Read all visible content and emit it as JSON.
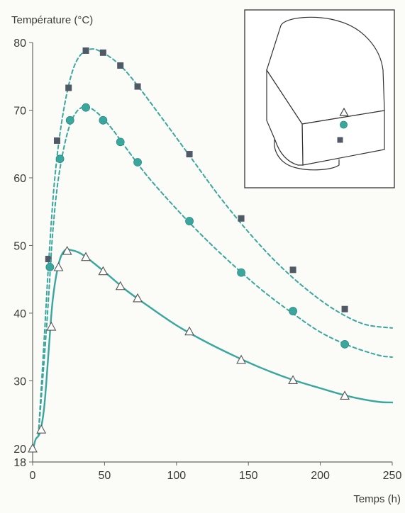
{
  "chart_data": {
    "type": "line",
    "ylabel": "Température (°C)",
    "xlabel": "Temps (h)",
    "xlim": [
      0,
      250
    ],
    "ylim": [
      18,
      80
    ],
    "x_ticks": [
      0,
      50,
      100,
      150,
      200,
      250
    ],
    "y_ticks": [
      18,
      20,
      30,
      40,
      50,
      60,
      70,
      80
    ],
    "grid": false,
    "colors": {
      "teal": "#3aa79f",
      "square_marker": "#4f5a66",
      "triangle_marker": "#ffffff",
      "axis": "#666666"
    },
    "series": [
      {
        "marker": "square",
        "line_style": "dashed",
        "points": [
          [
            11,
            48
          ],
          [
            17,
            65.5
          ],
          [
            25,
            73.3
          ],
          [
            37,
            78.8
          ],
          [
            49,
            78.5
          ],
          [
            61,
            76.6
          ],
          [
            73,
            73.5
          ],
          [
            109,
            63.5
          ],
          [
            145,
            54
          ],
          [
            181,
            46.4
          ],
          [
            217,
            40.6
          ]
        ],
        "curve": [
          [
            4,
            22
          ],
          [
            8,
            36
          ],
          [
            11,
            47
          ],
          [
            15,
            59
          ],
          [
            20,
            68
          ],
          [
            26,
            74.5
          ],
          [
            32,
            77.8
          ],
          [
            40,
            79
          ],
          [
            48,
            78.6
          ],
          [
            60,
            76.8
          ],
          [
            72,
            73.9
          ],
          [
            90,
            68.8
          ],
          [
            110,
            63
          ],
          [
            130,
            57.2
          ],
          [
            150,
            52
          ],
          [
            170,
            47.4
          ],
          [
            190,
            43.6
          ],
          [
            210,
            40.5
          ],
          [
            230,
            38.4
          ],
          [
            250,
            37.8
          ]
        ]
      },
      {
        "marker": "circle",
        "line_style": "dashed",
        "points": [
          [
            12,
            46.8
          ],
          [
            19,
            62.8
          ],
          [
            26,
            68.5
          ],
          [
            37,
            70.4
          ],
          [
            49,
            68.5
          ],
          [
            61,
            65.3
          ],
          [
            73,
            62.3
          ],
          [
            109,
            53.6
          ],
          [
            145,
            46
          ],
          [
            181,
            40.3
          ],
          [
            217,
            35.4
          ]
        ],
        "curve": [
          [
            4,
            22
          ],
          [
            8,
            33
          ],
          [
            11,
            42
          ],
          [
            14,
            52
          ],
          [
            18,
            60
          ],
          [
            24,
            66.5
          ],
          [
            30,
            69.6
          ],
          [
            37,
            70.5
          ],
          [
            45,
            69.6
          ],
          [
            55,
            67.3
          ],
          [
            65,
            64.4
          ],
          [
            80,
            60.2
          ],
          [
            100,
            55.4
          ],
          [
            120,
            51
          ],
          [
            140,
            47
          ],
          [
            160,
            43.3
          ],
          [
            180,
            40.1
          ],
          [
            200,
            37.2
          ],
          [
            220,
            35.2
          ],
          [
            240,
            33.8
          ],
          [
            250,
            33.5
          ]
        ]
      },
      {
        "marker": "triangle",
        "line_style": "solid",
        "points": [
          [
            0,
            20
          ],
          [
            6,
            22.8
          ],
          [
            13,
            38
          ],
          [
            18,
            46.8
          ],
          [
            24,
            49.2
          ],
          [
            37,
            48.3
          ],
          [
            49,
            46.2
          ],
          [
            61,
            44
          ],
          [
            73,
            42.2
          ],
          [
            109,
            37.3
          ],
          [
            145,
            33.1
          ],
          [
            181,
            30.1
          ],
          [
            217,
            27.8
          ]
        ],
        "curve": [
          [
            0,
            19.5
          ],
          [
            2,
            21.3
          ],
          [
            5,
            22.3
          ],
          [
            8,
            26
          ],
          [
            11,
            34
          ],
          [
            14,
            42
          ],
          [
            18,
            47.2
          ],
          [
            22,
            49.2
          ],
          [
            27,
            49.3
          ],
          [
            35,
            48.6
          ],
          [
            50,
            46.1
          ],
          [
            65,
            43.4
          ],
          [
            80,
            41.1
          ],
          [
            100,
            38.2
          ],
          [
            120,
            35.8
          ],
          [
            140,
            33.7
          ],
          [
            160,
            31.8
          ],
          [
            180,
            30.2
          ],
          [
            200,
            28.9
          ],
          [
            220,
            27.7
          ],
          [
            240,
            26.9
          ],
          [
            250,
            26.8
          ]
        ]
      }
    ]
  }
}
